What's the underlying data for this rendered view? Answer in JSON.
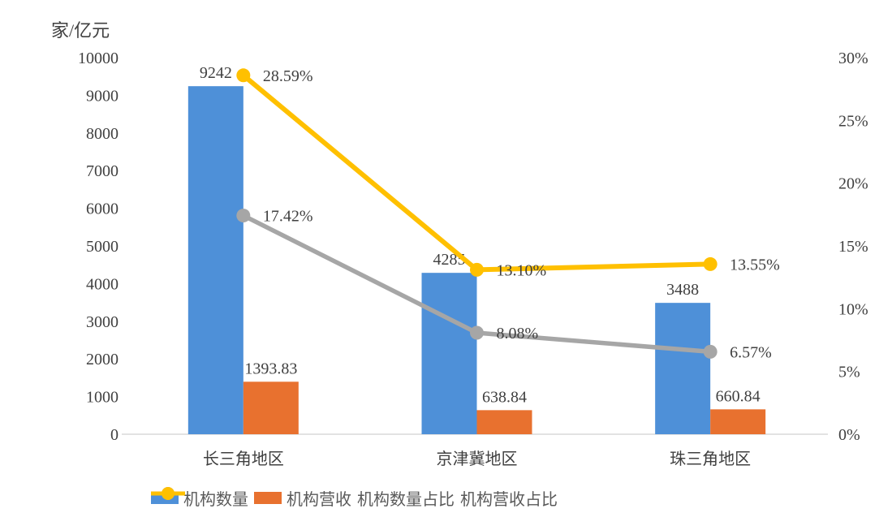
{
  "axis_title": "家/亿元",
  "chart_data": {
    "type": "combo-bar-line",
    "title": "",
    "categories": [
      "长三角地区",
      "京津冀地区",
      "珠三角地区"
    ],
    "series": [
      {
        "name": "机构数量",
        "type": "bar",
        "axis": "left",
        "color": "#4E90D8",
        "values": [
          9242,
          4285,
          3488
        ],
        "labels": [
          "9242",
          "4285",
          "3488"
        ]
      },
      {
        "name": "机构营收",
        "type": "bar",
        "axis": "left",
        "color": "#E8712F",
        "values": [
          1393.83,
          638.84,
          660.84
        ],
        "labels": [
          "1393.83",
          "638.84",
          "660.84"
        ]
      },
      {
        "name": "机构数量占比",
        "type": "line",
        "axis": "right",
        "color": "#A6A6A6",
        "values": [
          17.42,
          8.08,
          6.57
        ],
        "labels": [
          "17.42%",
          "8.08%",
          "6.57%"
        ]
      },
      {
        "name": "机构营收占比",
        "type": "line",
        "axis": "right",
        "color": "#FFC000",
        "values": [
          28.59,
          13.1,
          13.55
        ],
        "labels": [
          "28.59%",
          "13.10%",
          "13.55%"
        ]
      }
    ],
    "left_axis": {
      "label": "家/亿元",
      "min": 0,
      "max": 10000,
      "step": 1000,
      "tick_labels": [
        "0",
        "1000",
        "2000",
        "3000",
        "4000",
        "5000",
        "6000",
        "7000",
        "8000",
        "9000",
        "10000"
      ]
    },
    "right_axis": {
      "min": 0,
      "max": 30,
      "step": 5,
      "tick_labels": [
        "0%",
        "5%",
        "10%",
        "15%",
        "20%",
        "25%",
        "30%"
      ]
    },
    "grid": "off",
    "legend_position": "bottom"
  },
  "colors": {
    "axis_line": "#D9D9D9",
    "tick_text": "#404040",
    "data_label_text": "#404040",
    "category_text": "#595959",
    "legend_text": "#595959"
  }
}
